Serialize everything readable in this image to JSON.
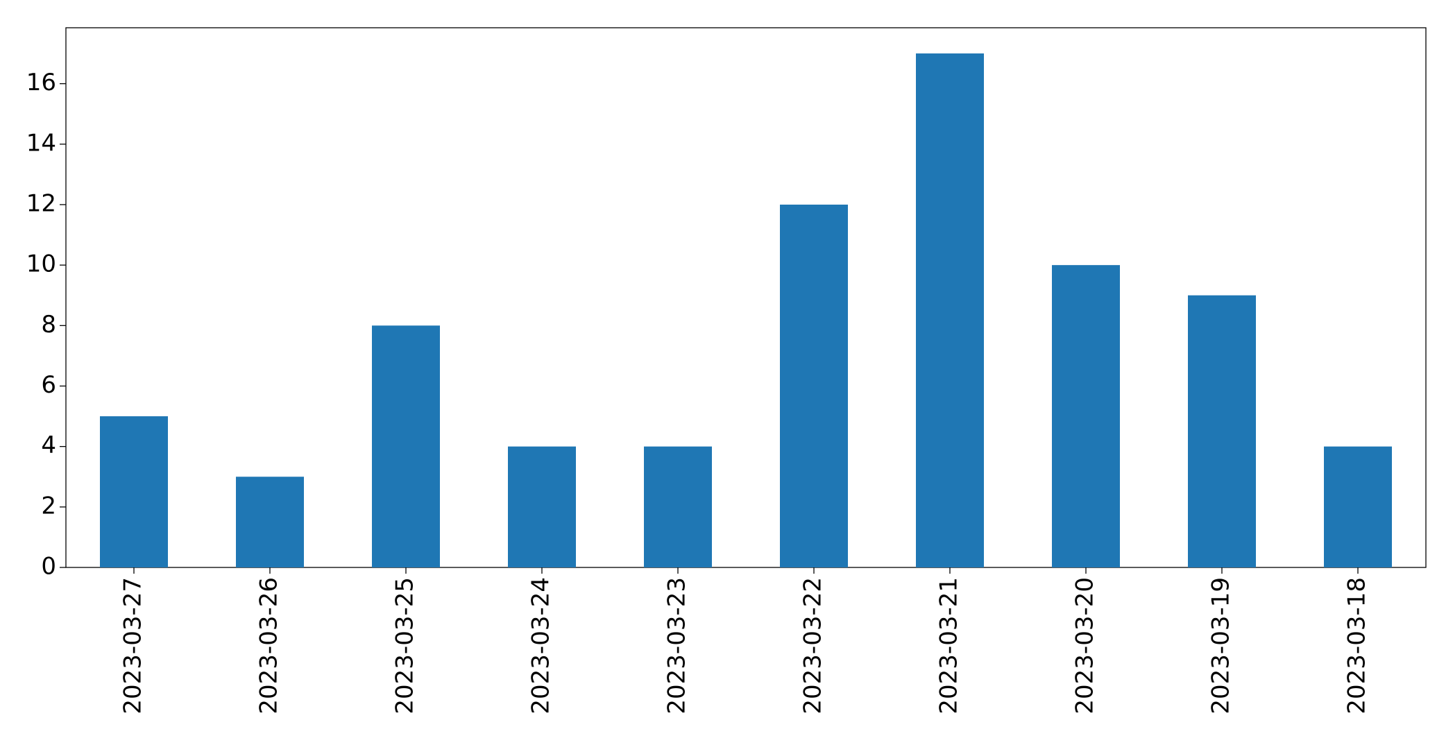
{
  "chart_data": {
    "type": "bar",
    "categories": [
      "2023-03-27",
      "2023-03-26",
      "2023-03-25",
      "2023-03-24",
      "2023-03-23",
      "2023-03-22",
      "2023-03-21",
      "2023-03-20",
      "2023-03-19",
      "2023-03-18"
    ],
    "values": [
      5,
      3,
      8,
      4,
      4,
      12,
      17,
      10,
      9,
      4
    ],
    "color": "#1f77b4",
    "ylim": [
      0,
      17.85
    ],
    "yticks": [
      0,
      2,
      4,
      6,
      8,
      10,
      12,
      14,
      16
    ],
    "grid": false
  }
}
